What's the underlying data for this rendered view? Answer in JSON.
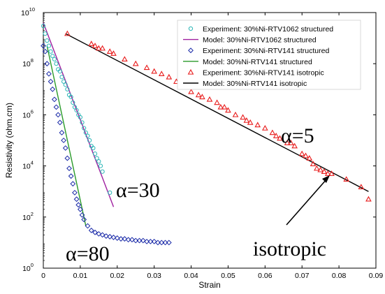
{
  "chart_data": {
    "type": "scatter",
    "xlabel": "Strain",
    "ylabel": "Resistivity (ohm.cm)",
    "xlim": [
      0,
      0.09
    ],
    "ylim": [
      1,
      10000000000
    ],
    "yscale": "log",
    "x_ticks": [
      "0",
      "0.01",
      "0.02",
      "0.03",
      "0.04",
      "0.05",
      "0.06",
      "0.07",
      "0.08",
      "0.09"
    ],
    "y_ticks": [
      {
        "base": "10",
        "exp": "0"
      },
      {
        "base": "10",
        "exp": "2"
      },
      {
        "base": "10",
        "exp": "4"
      },
      {
        "base": "10",
        "exp": "6"
      },
      {
        "base": "10",
        "exp": "8"
      },
      {
        "base": "10",
        "exp": "10"
      }
    ],
    "grid": false,
    "legend_position": "top-right",
    "series": [
      {
        "name": "Experiment: 30%Ni-RTV1062 structured",
        "kind": "scatter",
        "marker": "circle",
        "color": "#2bb6b6",
        "x": [
          0.0,
          0.0005,
          0.001,
          0.0015,
          0.002,
          0.0025,
          0.003,
          0.0035,
          0.004,
          0.0045,
          0.005,
          0.0055,
          0.006,
          0.0065,
          0.007,
          0.0075,
          0.008,
          0.0085,
          0.009,
          0.0095,
          0.01,
          0.0105,
          0.011,
          0.0115,
          0.012,
          0.0125,
          0.013,
          0.0135,
          0.014,
          0.0145,
          0.015,
          0.0155,
          0.016,
          0.018
        ],
        "y": [
          3000000000.0,
          1500000000.0,
          800000000.0,
          500000000.0,
          300000000.0,
          200000000.0,
          150000000.0,
          100000000.0,
          60000000.0,
          50000000.0,
          30000000.0,
          20000000.0,
          15000000.0,
          10000000.0,
          6000000.0,
          5000000.0,
          3000000.0,
          2000000.0,
          1500000.0,
          1000000.0,
          800000.0,
          500000.0,
          300000.0,
          200000.0,
          150000.0,
          100000.0,
          60000.0,
          50000.0,
          30000.0,
          20000.0,
          15000.0,
          10000.0,
          6000.0,
          900.0
        ]
      },
      {
        "name": "Model: 30%Ni-RTV1062 structured",
        "kind": "line",
        "color": "#a020a0",
        "x": [
          0.0,
          0.019
        ],
        "y": [
          4000000000.0,
          250
        ]
      },
      {
        "name": "Experiment: 30%Ni-RTV141 structured",
        "kind": "scatter",
        "marker": "diamond",
        "color": "#1a2aa8",
        "x": [
          0.0,
          0.0005,
          0.001,
          0.0015,
          0.002,
          0.0025,
          0.003,
          0.0035,
          0.004,
          0.0045,
          0.005,
          0.0055,
          0.006,
          0.0065,
          0.007,
          0.0075,
          0.008,
          0.0085,
          0.009,
          0.0095,
          0.01,
          0.0105,
          0.011,
          0.012,
          0.013,
          0.014,
          0.015,
          0.016,
          0.017,
          0.018,
          0.019,
          0.02,
          0.021,
          0.022,
          0.023,
          0.024,
          0.025,
          0.026,
          0.027,
          0.028,
          0.029,
          0.03,
          0.031,
          0.032,
          0.033,
          0.034
        ],
        "y": [
          500000000.0,
          300000000.0,
          100000000.0,
          40000000.0,
          20000000.0,
          10000000.0,
          4000000.0,
          2000000.0,
          1000000.0,
          500000.0,
          200000.0,
          100000.0,
          50000.0,
          20000.0,
          8000.0,
          4000.0,
          2000.0,
          900,
          500,
          300,
          200,
          120,
          80,
          45,
          30,
          25,
          22,
          20,
          18,
          17,
          16,
          15,
          14,
          14,
          13,
          13,
          12,
          12,
          12,
          11,
          11,
          11,
          10,
          10,
          10,
          10
        ]
      },
      {
        "name": "Model: 30%Ni-RTV141 structured",
        "kind": "line",
        "color": "#2a9a2a",
        "x": [
          0.001,
          0.0115
        ],
        "y": [
          500000000.0,
          45
        ]
      },
      {
        "name": "Experiment: 30%Ni-RTV141 isotropic",
        "kind": "scatter",
        "marker": "triangle",
        "color": "#e81c1c",
        "x": [
          0.0065,
          0.013,
          0.014,
          0.015,
          0.016,
          0.018,
          0.019,
          0.022,
          0.025,
          0.028,
          0.03,
          0.032,
          0.034,
          0.036,
          0.037,
          0.038,
          0.04,
          0.042,
          0.043,
          0.045,
          0.047,
          0.048,
          0.049,
          0.05,
          0.052,
          0.054,
          0.055,
          0.056,
          0.058,
          0.06,
          0.062,
          0.063,
          0.064,
          0.066,
          0.067,
          0.068,
          0.07,
          0.071,
          0.072,
          0.073,
          0.074,
          0.075,
          0.076,
          0.077,
          0.078,
          0.082,
          0.086,
          0.088
        ],
        "y": [
          1500000000.0,
          600000000.0,
          500000000.0,
          400000000.0,
          400000000.0,
          300000000.0,
          250000000.0,
          150000000.0,
          100000000.0,
          70000000.0,
          50000000.0,
          40000000.0,
          30000000.0,
          20000000.0,
          15000000.0,
          15000000.0,
          8000000.0,
          6000000.0,
          5000000.0,
          4000000.0,
          3000000.0,
          2000000.0,
          2000000.0,
          1500000.0,
          1000000.0,
          800000.0,
          600000.0,
          500000.0,
          400000.0,
          300000.0,
          200000.0,
          150000.0,
          120000.0,
          80000.0,
          80000.0,
          60000.0,
          30000.0,
          25000.0,
          20000.0,
          12000.0,
          8000.0,
          7000.0,
          6000.0,
          5000.0,
          5000.0,
          3000.0,
          1500.0,
          500
        ]
      },
      {
        "name": "Model: 30%Ni-RTV141 isotropic",
        "kind": "line",
        "color": "#000000",
        "x": [
          0.006,
          0.088
        ],
        "y": [
          1500000000.0,
          1000.0
        ]
      }
    ],
    "annotations": [
      {
        "text": "α=5"
      },
      {
        "text": "α=30"
      },
      {
        "text": "α=80"
      },
      {
        "text": "isotropic"
      }
    ]
  }
}
